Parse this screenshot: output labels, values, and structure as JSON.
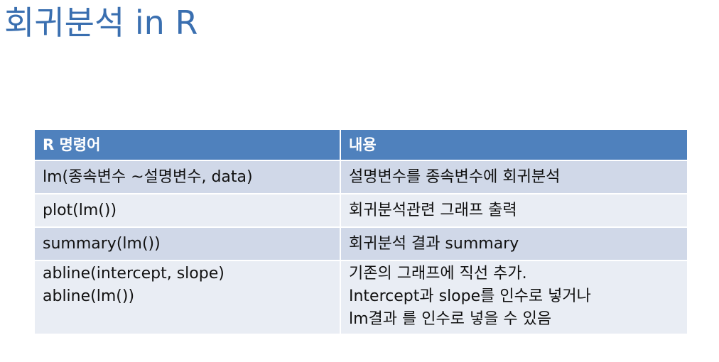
{
  "slide": {
    "title": "회귀분석 in R"
  },
  "table": {
    "headers": [
      "R 명령어",
      "내용"
    ],
    "rows": [
      {
        "command": [
          "lm(종속변수 ~설명변수, data)"
        ],
        "description": [
          "설명변수를 종속변수에 회귀분석"
        ]
      },
      {
        "command": [
          "plot(lm())"
        ],
        "description": [
          "회귀분석관련 그래프 출력"
        ]
      },
      {
        "command": [
          "summary(lm())"
        ],
        "description": [
          "회귀분석 결과 summary"
        ]
      },
      {
        "command": [
          "abline(intercept, slope)",
          "abline(lm())"
        ],
        "description": [
          "기존의 그래프에 직선 추가.",
          "Intercept과 slope를 인수로 넣거나",
          "lm결과 를 인수로 넣을 수 있음"
        ]
      }
    ]
  },
  "colors": {
    "title": "#3a6fb0",
    "header_bg": "#4f81bd",
    "row_dark": "#d0d8e8",
    "row_light": "#e9edf4"
  }
}
